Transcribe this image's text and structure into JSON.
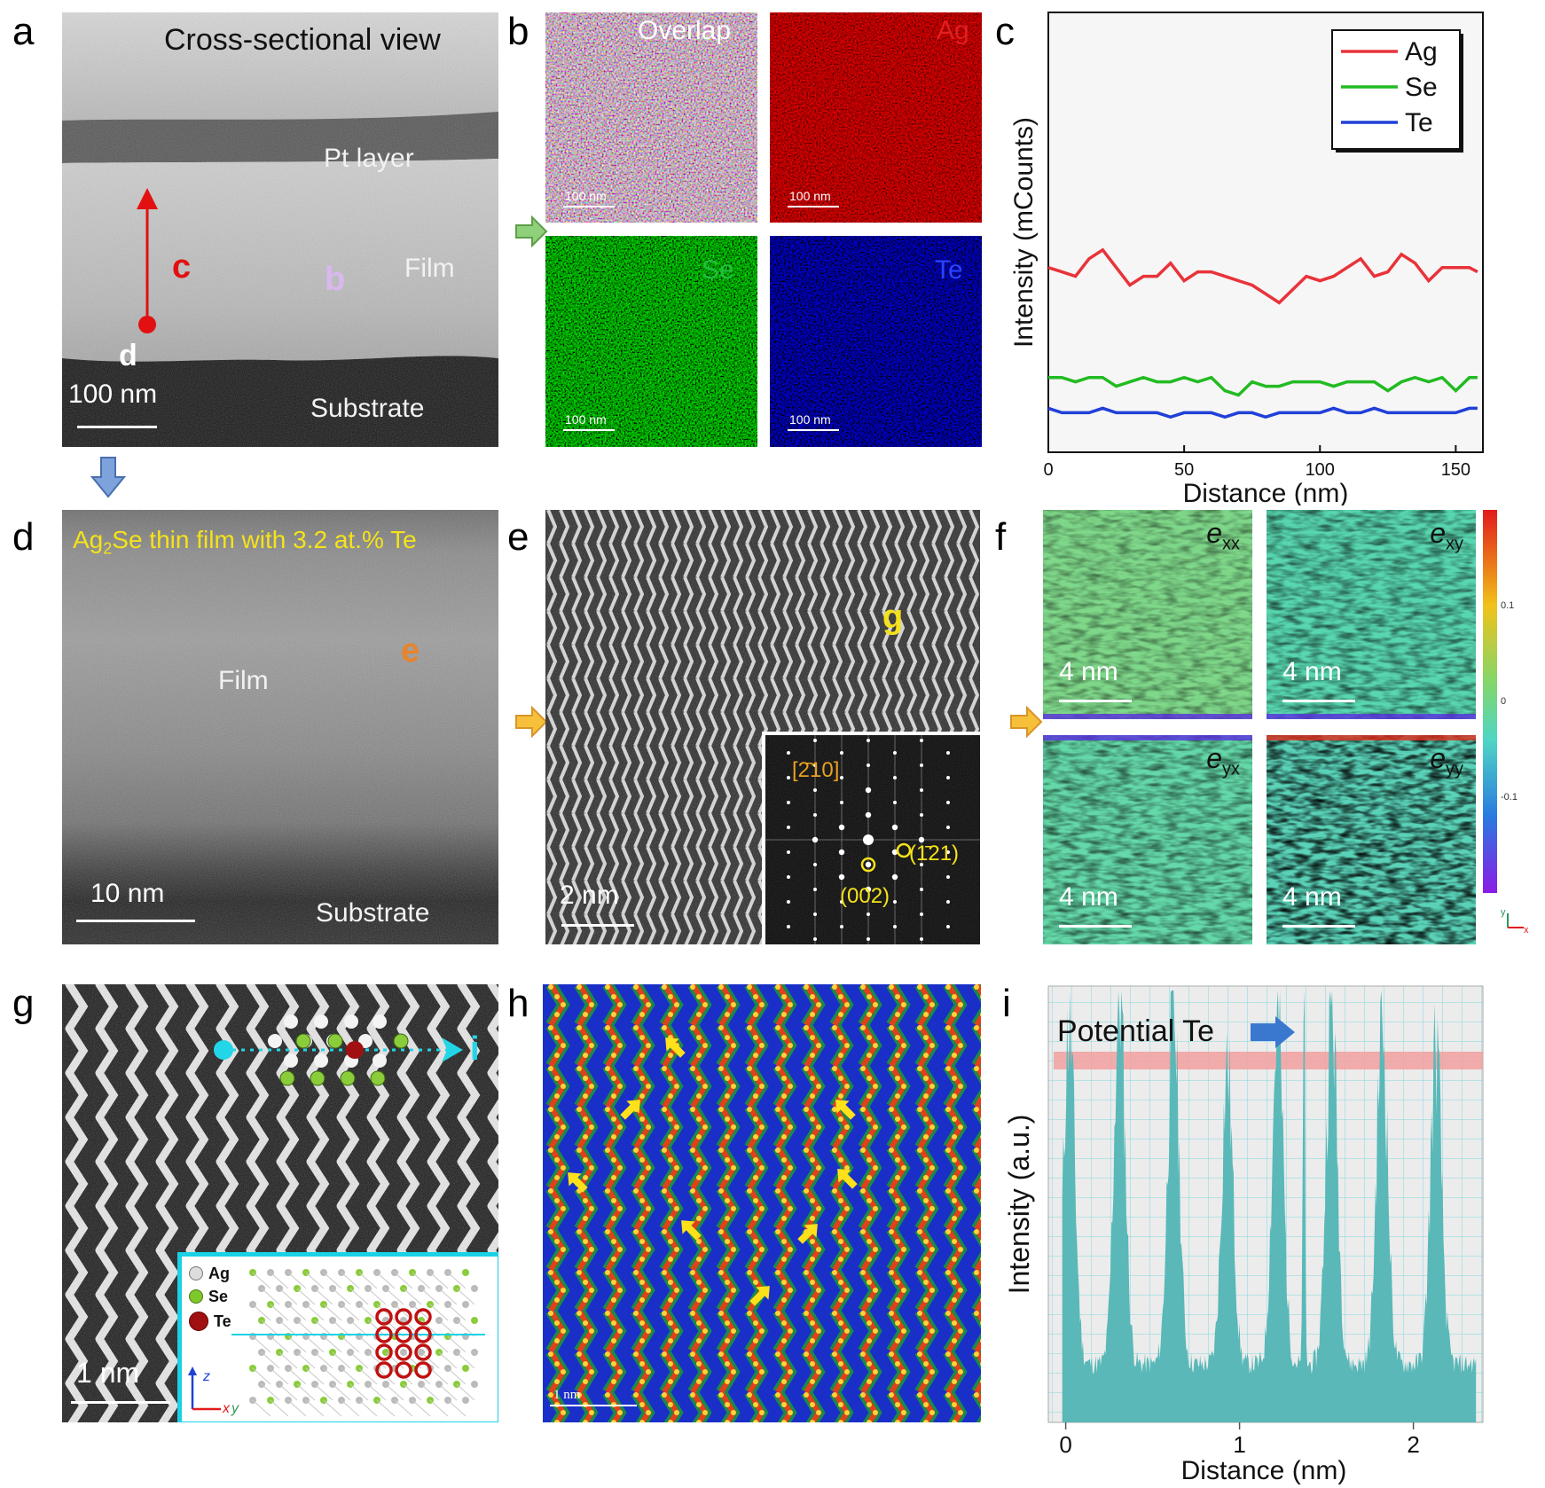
{
  "panels": {
    "a": {
      "label": "a",
      "title": "Cross-sectional view",
      "pt_layer": "Pt layer",
      "film": "Film",
      "substrate": "Substrate",
      "marker_c": "c",
      "marker_b": "b",
      "marker_d": "d",
      "scale": "100 nm"
    },
    "b": {
      "label": "b",
      "maps": [
        {
          "name": "Overlap",
          "color": "#ffffff",
          "scale": "100 nm"
        },
        {
          "name": "Ag",
          "color": "#e02020",
          "scale": "100 nm"
        },
        {
          "name": "Se",
          "color": "#22c040",
          "scale": "100 nm"
        },
        {
          "name": "Te",
          "color": "#2a44ff",
          "scale": "100 nm"
        }
      ]
    },
    "c": {
      "label": "c"
    },
    "d": {
      "label": "d",
      "title_pre": "Ag",
      "title_sub": "2",
      "title_post": "Se thin film with 3.2 at.% Te",
      "film": "Film",
      "marker_e": "e",
      "substrate": "Substrate",
      "scale": "10 nm"
    },
    "e": {
      "label": "e",
      "marker_g": "g",
      "scale": "2 nm",
      "fft_labels": {
        "z": "[2̄10]",
        "a": "(1̄21)",
        "b": "(002)"
      }
    },
    "f": {
      "label": "f",
      "maps": [
        {
          "sym": "e",
          "sub": "xx",
          "scale": "4 nm"
        },
        {
          "sym": "e",
          "sub": "xy",
          "scale": "4 nm"
        },
        {
          "sym": "e",
          "sub": "yx",
          "scale": "4 nm"
        },
        {
          "sym": "e",
          "sub": "yy",
          "scale": "4 nm"
        }
      ],
      "colorbar": {
        "ticks": [
          "0.1",
          "0",
          "-0.1"
        ],
        "range": [
          -0.15,
          0.15
        ]
      },
      "axes": {
        "y": "y",
        "x": "x"
      }
    },
    "g": {
      "label": "g",
      "marker_i": "i",
      "scale": "1 nm",
      "legend": [
        "Ag",
        "Se",
        "Te"
      ],
      "axes": {
        "z": "z",
        "x": "x",
        "y": "y"
      }
    },
    "h": {
      "label": "h",
      "scale": "1 nm"
    },
    "i": {
      "label": "i",
      "annotation": "Potential Te"
    }
  },
  "chart_data": [
    {
      "type": "line",
      "panel": "c",
      "xlabel": "Distance (nm)",
      "ylabel": "Intensity (mCounts)",
      "xlim": [
        0,
        160
      ],
      "xticks": [
        0,
        50,
        100,
        150
      ],
      "ylim": [
        0,
        100
      ],
      "grid": false,
      "legend_position": "top-right",
      "series": [
        {
          "name": "Ag",
          "color": "#e8333a",
          "x": [
            0,
            5,
            10,
            15,
            20,
            25,
            30,
            35,
            40,
            45,
            50,
            55,
            60,
            65,
            70,
            75,
            80,
            85,
            90,
            95,
            100,
            105,
            110,
            115,
            120,
            125,
            130,
            135,
            140,
            145,
            150,
            155,
            158
          ],
          "y": [
            42,
            41,
            40,
            44,
            46,
            42,
            38,
            40,
            40,
            43,
            39,
            41,
            41,
            40,
            39,
            38,
            36,
            34,
            37,
            40,
            39,
            40,
            42,
            44,
            40,
            41,
            45,
            43,
            39,
            42,
            42,
            42,
            41
          ]
        },
        {
          "name": "Se",
          "color": "#22bb22",
          "x": [
            0,
            5,
            10,
            15,
            20,
            25,
            30,
            35,
            40,
            45,
            50,
            55,
            60,
            65,
            70,
            75,
            80,
            85,
            90,
            95,
            100,
            105,
            110,
            115,
            120,
            125,
            130,
            135,
            140,
            145,
            150,
            155,
            158
          ],
          "y": [
            17,
            17,
            16,
            17,
            17,
            15,
            16,
            17,
            16,
            16,
            17,
            16,
            17,
            14,
            13,
            16,
            15,
            15,
            16,
            16,
            16,
            15,
            16,
            16,
            16,
            14,
            16,
            17,
            16,
            17,
            14,
            17,
            17
          ]
        },
        {
          "name": "Te",
          "color": "#2040d8",
          "x": [
            0,
            5,
            10,
            15,
            20,
            25,
            30,
            35,
            40,
            45,
            50,
            55,
            60,
            65,
            70,
            75,
            80,
            85,
            90,
            95,
            100,
            105,
            110,
            115,
            120,
            125,
            130,
            135,
            140,
            145,
            150,
            155,
            158
          ],
          "y": [
            10,
            9,
            9,
            9,
            10,
            9,
            9,
            9,
            9,
            8,
            9,
            9,
            9,
            8,
            9,
            9,
            8,
            9,
            9,
            9,
            9,
            10,
            9,
            9,
            10,
            9,
            9,
            9,
            9,
            9,
            9,
            10,
            10
          ]
        }
      ]
    },
    {
      "type": "area",
      "panel": "i",
      "xlabel": "Distance (nm)",
      "ylabel": "Intensity (a.u.)",
      "xlim": [
        -0.1,
        2.4
      ],
      "xticks": [
        0,
        1,
        2
      ],
      "ylim": [
        0,
        1
      ],
      "grid": true,
      "peaks_nm": [
        0.02,
        0.31,
        0.62,
        0.93,
        1.22,
        1.53,
        1.82,
        2.13
      ],
      "peak_heights": [
        0.82,
        0.88,
        0.85,
        0.72,
        0.82,
        0.86,
        0.82,
        0.76
      ],
      "te_peak": {
        "x": 1.37,
        "height": 0.98
      },
      "color": "#5ab8b8",
      "highlight_band": [
        0.86,
        0.9
      ]
    }
  ],
  "colors": {
    "annot_yellow": "#f5e21a",
    "annot_orange": "#e8842a",
    "arrow_red": "#e21010",
    "arrow_cyan": "#22d6e8",
    "frame_cyan": "#1bd1e6"
  }
}
